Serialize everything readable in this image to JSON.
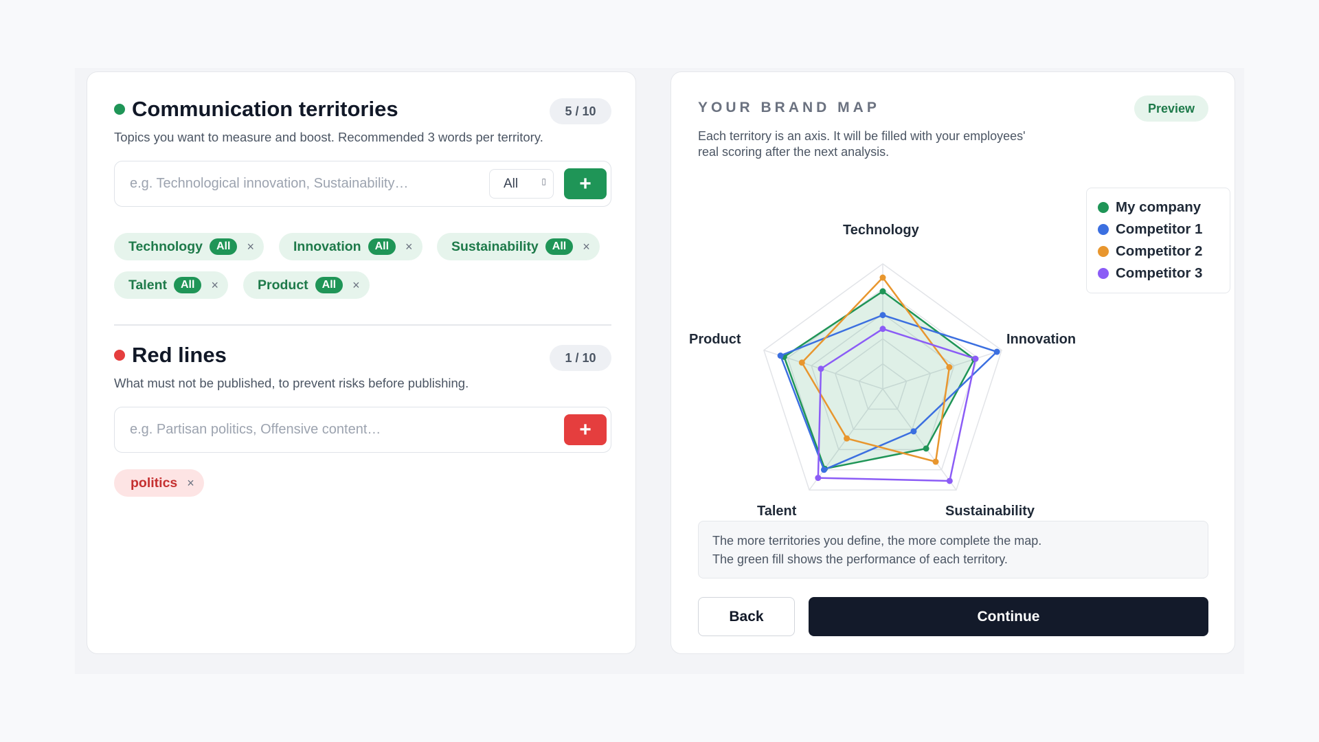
{
  "territories": {
    "title": "Communication territories",
    "count": "5 / 10",
    "subtitle": "Topics you want to measure and boost. Recommended 3 words per territory.",
    "input_placeholder": "e.g. Technological innovation, Sustainability…",
    "scope_select": "All",
    "scope_caret_glyph": "▯",
    "add_glyph": "+",
    "status_color": "#1f9557",
    "chips": [
      {
        "label": "Technology",
        "tag": "All",
        "remove": "×"
      },
      {
        "label": "Innovation",
        "tag": "All",
        "remove": "×"
      },
      {
        "label": "Sustainability",
        "tag": "All",
        "remove": "×"
      },
      {
        "label": "Talent",
        "tag": "All",
        "remove": "×"
      },
      {
        "label": "Product",
        "tag": "All",
        "remove": "×"
      }
    ]
  },
  "red_lines": {
    "title": "Red lines",
    "count": "1 / 10",
    "subtitle": "What must not be published, to prevent risks before publishing.",
    "input_placeholder": "e.g. Partisan politics, Offensive content…",
    "add_glyph": "+",
    "status_color": "#e53e3e",
    "chips": [
      {
        "label": "politics",
        "remove": "×"
      }
    ]
  },
  "brand_map": {
    "title": "YOUR BRAND MAP",
    "badge": "Preview",
    "description_line1": "Each territory is an axis. It will be filled with your employees'",
    "description_line2": "real scoring after the next analysis.",
    "note_line1": "The more territories you define, the more complete the map.",
    "note_line2": "The green fill shows the performance of each territory.",
    "back_button": "Back",
    "continue_button": "Continue"
  },
  "chart_data": {
    "type": "radar",
    "axes": [
      "Technology",
      "Innovation",
      "Sustainability",
      "Talent",
      "Product"
    ],
    "range": [
      0,
      100
    ],
    "grid_levels": 5,
    "series": [
      {
        "name": "My company",
        "color": "#1f9557",
        "fill": true,
        "values": [
          78,
          77,
          59,
          79,
          83
        ]
      },
      {
        "name": "Competitor 1",
        "color": "#3b6fe0",
        "fill": false,
        "values": [
          59,
          96,
          42,
          80,
          86
        ]
      },
      {
        "name": "Competitor 2",
        "color": "#e8962e",
        "fill": false,
        "values": [
          89,
          56,
          72,
          49,
          68
        ]
      },
      {
        "name": "Competitor 3",
        "color": "#8b5cf6",
        "fill": false,
        "values": [
          48,
          78,
          91,
          88,
          52
        ]
      }
    ],
    "legend_position": "top-right"
  }
}
